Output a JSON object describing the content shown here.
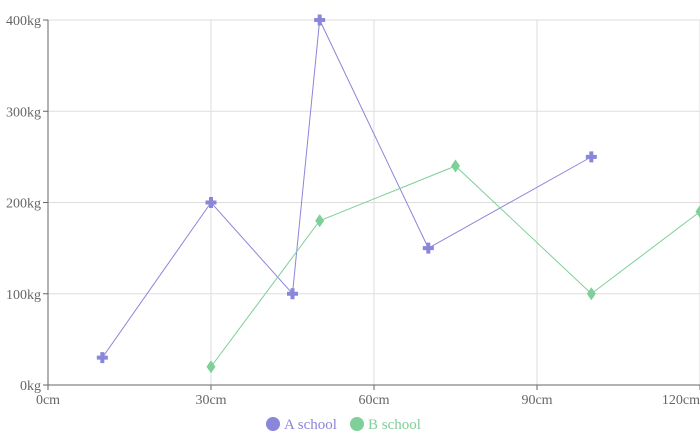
{
  "chart_data": {
    "type": "scatter",
    "xlim": [
      0,
      120
    ],
    "ylim": [
      0,
      400
    ],
    "x_ticks": [
      {
        "value": 0,
        "label": "0cm"
      },
      {
        "value": 30,
        "label": "30cm"
      },
      {
        "value": 60,
        "label": "60cm"
      },
      {
        "value": 90,
        "label": "90cm"
      },
      {
        "value": 120,
        "label": "120cm"
      }
    ],
    "y_ticks": [
      {
        "value": 0,
        "label": "0kg"
      },
      {
        "value": 100,
        "label": "100kg"
      },
      {
        "value": 200,
        "label": "200kg"
      },
      {
        "value": 300,
        "label": "300kg"
      },
      {
        "value": 400,
        "label": "400kg"
      }
    ],
    "grid": true,
    "legend_position": "bottom-center",
    "series": [
      {
        "name": "A school",
        "color": "#8a86d9",
        "marker": "cross",
        "points": [
          {
            "x": 10,
            "y": 30
          },
          {
            "x": 30,
            "y": 200
          },
          {
            "x": 45,
            "y": 100
          },
          {
            "x": 50,
            "y": 400
          },
          {
            "x": 70,
            "y": 150
          },
          {
            "x": 100,
            "y": 250
          }
        ]
      },
      {
        "name": "B school",
        "color": "#7fcf98",
        "marker": "diamond",
        "points": [
          {
            "x": 30,
            "y": 20
          },
          {
            "x": 50,
            "y": 180
          },
          {
            "x": 75,
            "y": 240
          },
          {
            "x": 100,
            "y": 100
          },
          {
            "x": 120,
            "y": 190
          }
        ]
      }
    ]
  }
}
